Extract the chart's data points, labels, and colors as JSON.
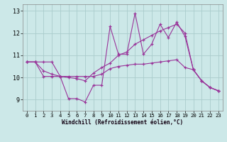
{
  "background_color": "#cce8e8",
  "grid_color": "#aacccc",
  "line_color": "#993399",
  "marker": "+",
  "xlabel": "Windchill (Refroidissement éolien,°C)",
  "xlim": [
    -0.5,
    23.5
  ],
  "ylim": [
    8.5,
    13.3
  ],
  "yticks": [
    9,
    10,
    11,
    12,
    13
  ],
  "xticks": [
    0,
    1,
    2,
    3,
    4,
    5,
    6,
    7,
    8,
    9,
    10,
    11,
    12,
    13,
    14,
    15,
    16,
    17,
    18,
    19,
    20,
    21,
    22,
    23
  ],
  "series": [
    [
      10.7,
      10.7,
      10.7,
      10.7,
      10.05,
      9.05,
      9.05,
      8.9,
      9.65,
      9.65,
      12.3,
      11.05,
      11.05,
      12.9,
      11.05,
      11.5,
      12.4,
      11.8,
      12.5,
      11.85,
      10.35,
      9.85,
      9.55,
      9.4
    ],
    [
      10.7,
      10.7,
      10.05,
      10.05,
      10.05,
      10.05,
      10.05,
      10.05,
      10.05,
      10.15,
      10.4,
      10.5,
      10.55,
      10.6,
      10.6,
      10.65,
      10.7,
      10.75,
      10.8,
      10.45,
      10.35,
      9.85,
      9.55,
      9.4
    ],
    [
      10.7,
      10.7,
      10.3,
      10.15,
      10.05,
      10.0,
      9.95,
      9.85,
      10.2,
      10.45,
      10.65,
      11.0,
      11.15,
      11.5,
      11.7,
      11.9,
      12.1,
      12.25,
      12.4,
      12.0,
      10.35,
      9.85,
      9.55,
      9.4
    ]
  ]
}
